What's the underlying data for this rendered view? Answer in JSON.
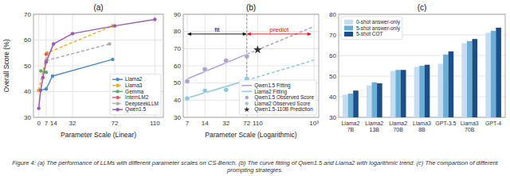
{
  "chart_data": [
    {
      "type": "line",
      "title": "(a)",
      "xlabel": "Parameter Scale (Linear)",
      "ylabel": "Overall Score (%)",
      "xlim": [
        -5,
        118
      ],
      "xticks": [
        0,
        7,
        14,
        32,
        72,
        110
      ],
      "ylim": [
        30,
        70
      ],
      "yticks": [
        30,
        40,
        50,
        60,
        70
      ],
      "grid": true,
      "legend": "lower right",
      "series": [
        {
          "name": "Llama2",
          "color": "#4C8CBF",
          "line_style": "solid",
          "marker": "circle",
          "x": [
            0,
            7,
            13,
            70
          ],
          "values": [
            40.5,
            41,
            46,
            52.5
          ]
        },
        {
          "name": "Llama3",
          "color": "#F5A623",
          "line_style": "dashed",
          "marker": "circle",
          "x": [
            0,
            8,
            70
          ],
          "values": [
            40.5,
            55,
            65.5
          ]
        },
        {
          "name": "Gemma",
          "color": "#5BAD6F",
          "line_style": "solid",
          "marker": "circle",
          "x": [
            2,
            7
          ],
          "values": [
            48,
            47.5
          ]
        },
        {
          "name": "InternLM2",
          "color": "#E8585A",
          "line_style": "dashed",
          "marker": "circle",
          "x": [
            7
          ],
          "values": [
            54.5
          ]
        },
        {
          "name": "DeepseekLLM",
          "color": "#AAAAAA",
          "line_style": "dashed",
          "marker": "circle",
          "x": [
            7,
            67
          ],
          "values": [
            52,
            58.5
          ]
        },
        {
          "name": "Qwen1.5",
          "color": "#9B59B6",
          "line_style": "solid",
          "marker": "circle",
          "x": [
            0,
            1.8,
            4,
            7,
            14,
            32,
            72,
            110
          ],
          "values": [
            33.5,
            40.5,
            45.5,
            51.5,
            58.5,
            62.5,
            65.5,
            68
          ]
        }
      ]
    },
    {
      "type": "line",
      "title": "(b)",
      "xlabel": "Parameter Scale (Logarithmic)",
      "log": "x",
      "xlim": [
        6,
        1200
      ],
      "xticks": [
        7,
        14,
        32,
        72,
        110,
        {
          "value": 1000,
          "label": "10³"
        }
      ],
      "ylim": [
        30,
        90
      ],
      "yticks": [
        30,
        40,
        50,
        60,
        70,
        80,
        90
      ],
      "grid": true,
      "legend": "lower right",
      "series": [
        {
          "name": "Qwen1.5 Fitting",
          "color": "#B0A0D0",
          "line_style": "solid",
          "x": [
            7,
            72
          ],
          "values": [
            52.387,
            66.725
          ]
        },
        {
          "name": "Llama2 Fitting",
          "color": "#90C8E0",
          "line_style": "solid",
          "x": [
            7,
            72
          ],
          "values": [
            41.179,
            51.584
          ]
        },
        {
          "color": "#B0A0D0",
          "line_style": "dashed",
          "x": [
            72,
            1000
          ],
          "values": [
            66.725,
            82.91
          ]
        },
        {
          "color": "#90C8E0",
          "line_style": "dashed",
          "x": [
            72,
            1000
          ],
          "values": [
            51.584,
            63.331
          ]
        },
        {
          "name": "Qwen1.5 Observed Score",
          "type": "scatter",
          "color": "#B0A0D0",
          "marker": "circle",
          "x": [
            7,
            14,
            32,
            72
          ],
          "values": [
            51,
            58,
            63,
            65.5
          ]
        },
        {
          "name": "Llama2 Observed Score",
          "type": "scatter",
          "color": "#90C8E0",
          "marker": "circle",
          "x": [
            7,
            14,
            32,
            72
          ],
          "values": [
            41,
            45.5,
            46,
            52.5
          ]
        },
        {
          "name": "Qwen1.5-110B Prediction",
          "type": "scatter",
          "color": "#333333",
          "marker": "star",
          "x": [
            110
          ],
          "values": [
            69.332
          ]
        }
      ],
      "annotations": [
        {
          "text": "fit",
          "x": [
            7,
            72
          ],
          "y": 78.5,
          "color": "black"
        },
        {
          "text": "predict",
          "x": [
            72,
            900
          ],
          "y": 78.5,
          "color": "red"
        }
      ]
    },
    {
      "type": "bar",
      "title": "(c)",
      "categories": [
        "Llama2\n7B",
        "Llama2\n13B",
        "Llama2\n70B",
        "Llama3\n8B",
        "GPT-3.5",
        "Llama3\n70B",
        "GPT-4"
      ],
      "ylim": [
        30,
        80
      ],
      "yticks": [
        30,
        40,
        50,
        60,
        70,
        80
      ],
      "grid": true,
      "legend": "upper left",
      "series": [
        {
          "name": "0-shot answer-only",
          "color": "#C8DCF0",
          "values": [
            41,
            45.5,
            52.5,
            54.5,
            56,
            66,
            71
          ]
        },
        {
          "name": "5-shot answer-only",
          "color": "#6BAED6",
          "values": [
            41.5,
            47,
            53,
            55,
            60.5,
            67,
            72
          ]
        },
        {
          "name": "5-shot COT",
          "color": "#1A4F8A",
          "values": [
            43,
            46.5,
            53,
            55.5,
            62,
            68,
            73.5
          ]
        }
      ]
    }
  ],
  "caption": "Figure 4: (a) The performance of LLMs with different parameter scales on CS-Bench. (b) The curve fitting of Qwen1.5 and Llama2 with logarithmic trend. (c) The comparison of different prompting strategies."
}
